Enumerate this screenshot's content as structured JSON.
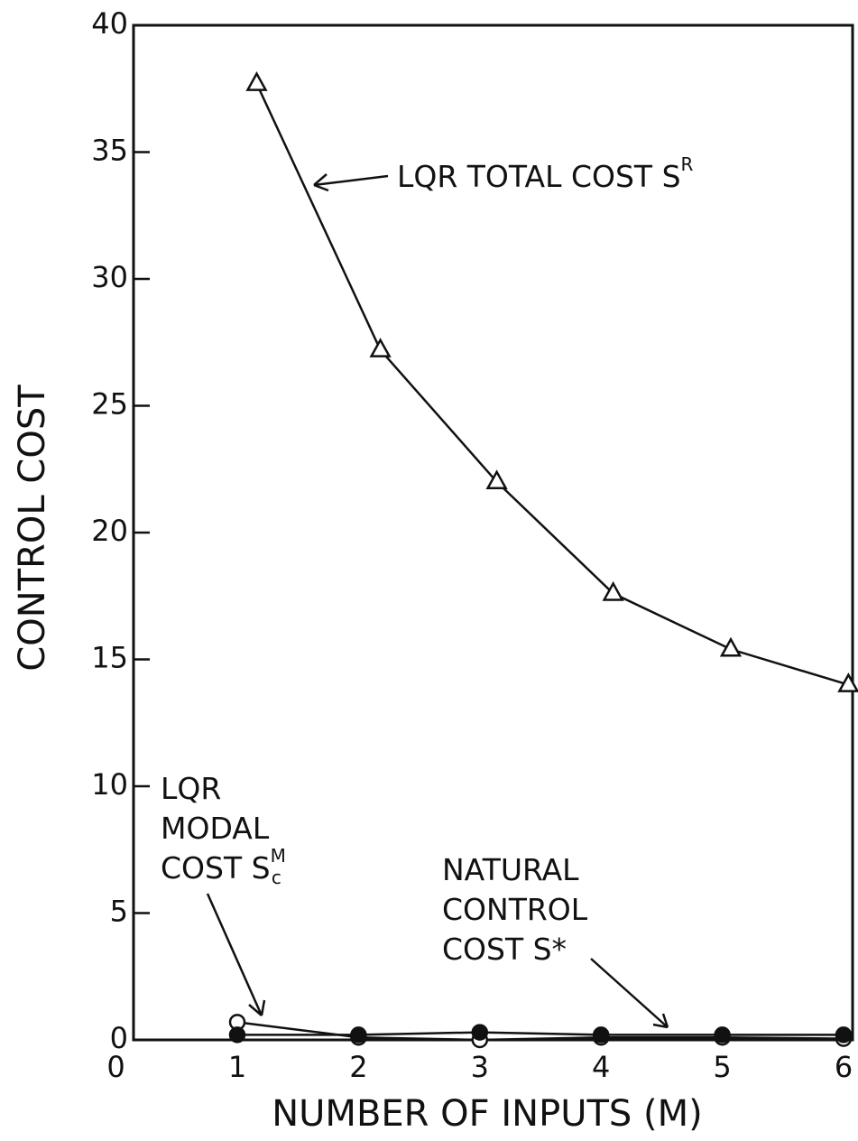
{
  "chart_data": {
    "type": "line",
    "x_label": "NUMBER OF INPUTS (M)",
    "y_label": "CONTROL COST",
    "xlim": [
      0.15,
      6.1
    ],
    "ylim": [
      0,
      40
    ],
    "xticks": [
      0,
      1,
      2,
      3,
      4,
      5,
      6
    ],
    "yticks": [
      0,
      5,
      10,
      15,
      20,
      25,
      30,
      35,
      40
    ],
    "series": [
      {
        "marker": "triangle",
        "color": "#111",
        "x": [
          1.16,
          2.18,
          3.14,
          4.1,
          5.07,
          6.04
        ],
        "values": [
          37.7,
          27.2,
          22.0,
          17.6,
          15.4,
          14.0
        ]
      },
      {
        "marker": "open-circle",
        "color": "#111",
        "x": [
          1,
          2,
          3,
          4,
          5,
          6
        ],
        "values": [
          0.7,
          0.1,
          0.0,
          0.1,
          0.1,
          0.05
        ]
      },
      {
        "marker": "filled-circle",
        "color": "#111",
        "x": [
          1,
          2,
          3,
          4,
          5,
          6
        ],
        "values": [
          0.2,
          0.2,
          0.3,
          0.2,
          0.2,
          0.2
        ]
      }
    ],
    "annotations": [
      {
        "lines": [
          "LQR TOTAL COST S"
        ],
        "sup": "R"
      },
      {
        "lines": [
          "LQR",
          "MODAL",
          "COST S"
        ],
        "sup": "M",
        "sub": "c"
      },
      {
        "lines": [
          "NATURAL",
          "CONTROL",
          "COST S*"
        ]
      }
    ]
  }
}
